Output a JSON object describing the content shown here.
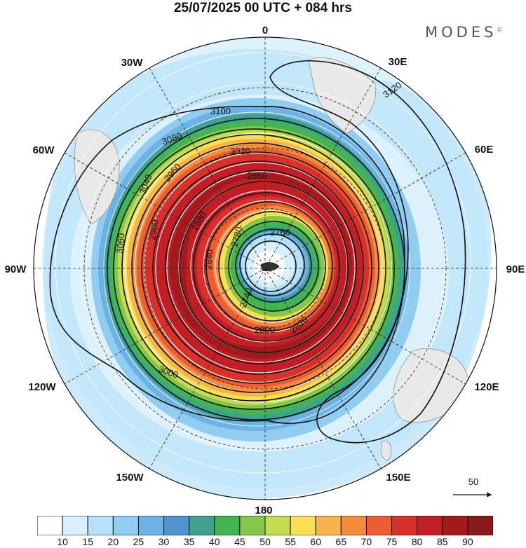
{
  "title": "25/07/2025  00 UTC  + 084 hrs",
  "brand": "MODES",
  "brand_mark": "©",
  "longitude_labels": {
    "n0": "0",
    "e30": "30E",
    "e60": "60E",
    "e90": "90E",
    "e120": "120E",
    "e150": "150E",
    "s180": "180",
    "w150": "150W",
    "w120": "120W",
    "w90": "90W",
    "w60": "60W",
    "w30": "30W"
  },
  "contour_labels": [
    "3120",
    "3100",
    "3080",
    "3060",
    "3040",
    "3020",
    "3000",
    "2980",
    "2960",
    "2880",
    "2850",
    "2840",
    "2820",
    "2800",
    "2780",
    "2760",
    "2740"
  ],
  "vector_reference": {
    "value": "50"
  },
  "colorbar": {
    "ticks": [
      "10",
      "15",
      "20",
      "25",
      "30",
      "35",
      "40",
      "45",
      "50",
      "55",
      "60",
      "65",
      "70",
      "75",
      "80",
      "85",
      "90"
    ],
    "colors": [
      "#ffffff",
      "#d8f0fd",
      "#b6e1f8",
      "#90cdf1",
      "#6cb2e5",
      "#4f94cf",
      "#3fa290",
      "#43b452",
      "#84c74a",
      "#c5dc51",
      "#fadf55",
      "#f7b44b",
      "#f58b3d",
      "#ef5c32",
      "#d9302b",
      "#c21e25",
      "#a31a1d",
      "#8a1a1a"
    ]
  }
}
